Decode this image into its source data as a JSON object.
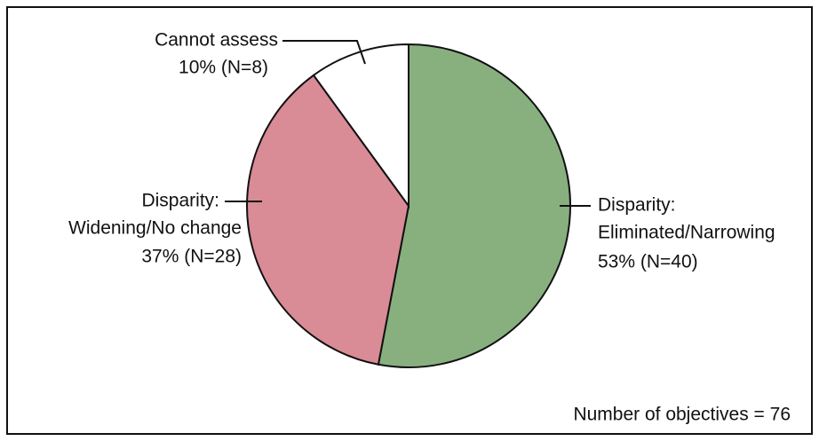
{
  "chart_data": {
    "type": "pie",
    "categories": [
      [
        "Disparity:",
        "Eliminated/Narrowing"
      ],
      [
        "Disparity:",
        "Widening/No change"
      ],
      [
        "Cannot assess"
      ]
    ],
    "values": [
      53,
      37,
      10
    ],
    "value_labels": [
      "53% (N=40)",
      "37% (N=28)",
      "10% (N=8)"
    ],
    "colors": [
      "#88b07f",
      "#d98b96",
      "#ffffff"
    ],
    "annotation": "Number of objectives = 76"
  }
}
